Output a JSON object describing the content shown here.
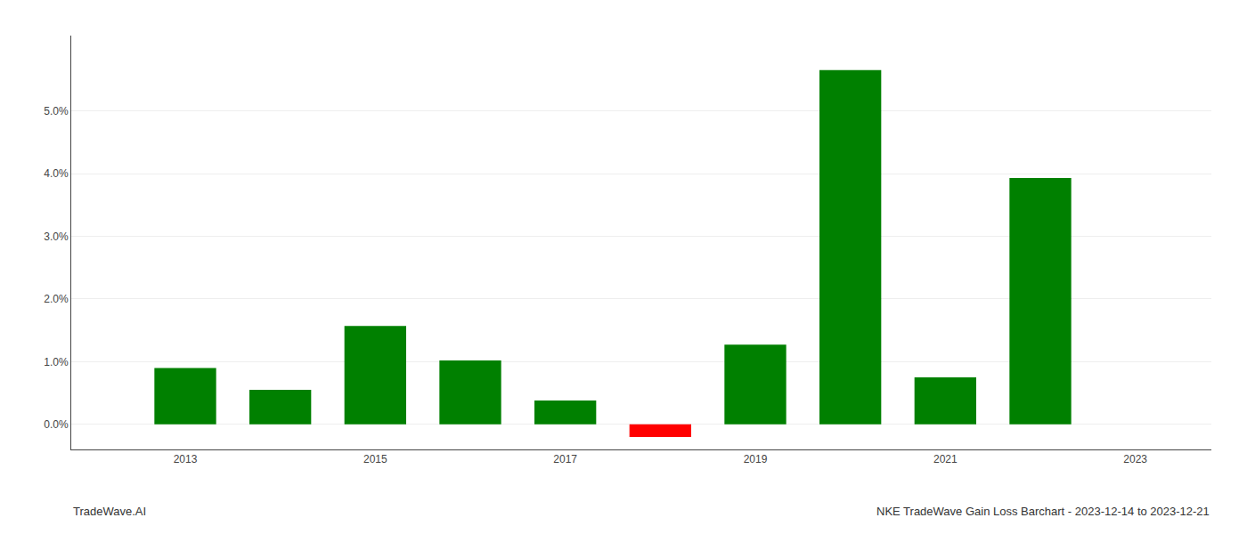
{
  "chart_data": {
    "type": "bar",
    "x": [
      2013,
      2014,
      2015,
      2016,
      2017,
      2018,
      2019,
      2020,
      2021,
      2022
    ],
    "values": [
      0.009,
      0.0055,
      0.0157,
      0.0102,
      0.0038,
      -0.002,
      0.0127,
      0.0565,
      0.0075,
      0.0393
    ],
    "colors": [
      "#008000",
      "#008000",
      "#008000",
      "#008000",
      "#008000",
      "#ff0000",
      "#008000",
      "#008000",
      "#008000",
      "#008000"
    ],
    "xlim": [
      2011.8,
      2023.8
    ],
    "xticks": [
      2013,
      2015,
      2017,
      2019,
      2021,
      2023
    ],
    "ylim": [
      -0.004,
      0.062
    ],
    "yticks": [
      {
        "value": 0.0,
        "label": "0.0%"
      },
      {
        "value": 0.01,
        "label": "1.0%"
      },
      {
        "value": 0.02,
        "label": "2.0%"
      },
      {
        "value": 0.03,
        "label": "3.0%"
      },
      {
        "value": 0.04,
        "label": "4.0%"
      },
      {
        "value": 0.05,
        "label": "5.0%"
      }
    ],
    "grid": true,
    "annotations": [
      "TradeWave.AI",
      "NKE TradeWave Gain Loss Barchart - 2023-12-14 to 2023-12-21"
    ]
  }
}
